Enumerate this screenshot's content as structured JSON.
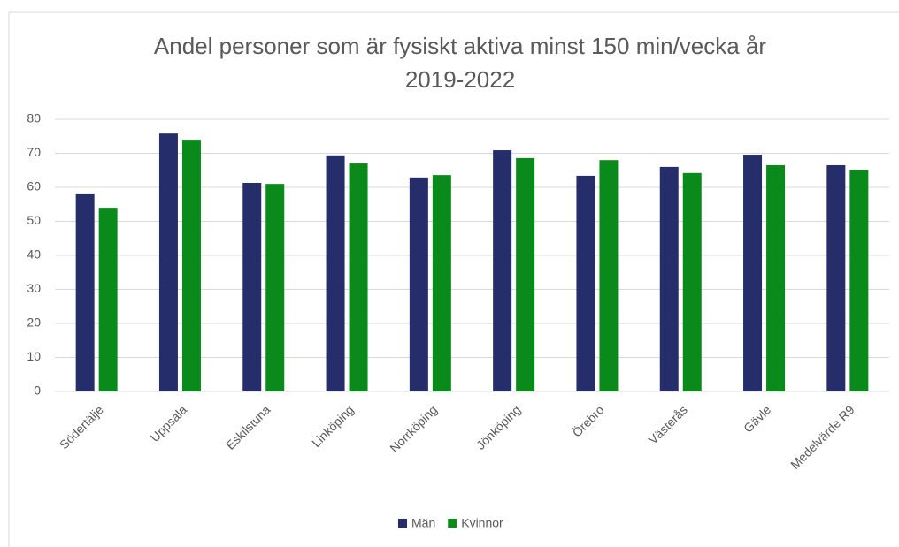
{
  "chart_data": {
    "type": "bar",
    "title": [
      "Andel personer som är fysiskt aktiva minst 150 min/vecka år",
      "2019-2022"
    ],
    "categories": [
      "Södertälje",
      "Uppsala",
      "Eskilstuna",
      "Linköping",
      "Norrköping",
      "Jönköping",
      "Örebro",
      "Västerås",
      "Gävle",
      "Medelvärde R9"
    ],
    "series": [
      {
        "name": "Män",
        "color": "#262d6b",
        "values": [
          58.2,
          75.8,
          61.3,
          69.4,
          62.9,
          70.9,
          63.4,
          66,
          69.6,
          66.5
        ]
      },
      {
        "name": "Kvinnor",
        "color": "#0a8a1a",
        "values": [
          54,
          74,
          61,
          67,
          63.6,
          68.6,
          68,
          64.2,
          66.5,
          65.2
        ]
      }
    ],
    "ylim": [
      0,
      80
    ],
    "yticks": [
      0,
      10,
      20,
      30,
      40,
      50,
      60,
      70,
      80
    ],
    "grid": true,
    "legend": "bottom"
  }
}
